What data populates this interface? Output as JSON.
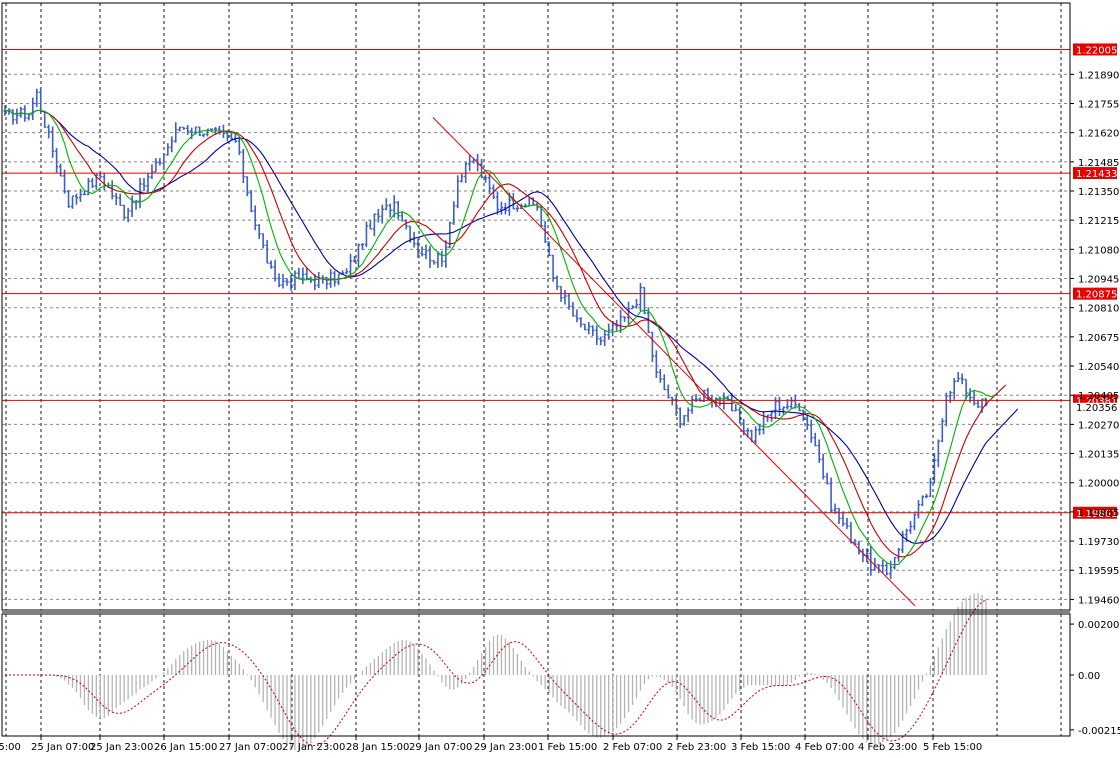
{
  "chart_data": {
    "type": "line",
    "price_ticks": [
      "1.21890",
      "1.21755",
      "1.21620",
      "1.21485",
      "1.21350",
      "1.21215",
      "1.21080",
      "1.20945",
      "1.20810",
      "1.20675",
      "1.20540",
      "1.20405",
      "1.20270",
      "1.20135",
      "1.20000",
      "1.19865",
      "1.19730",
      "1.19595",
      "1.19460"
    ],
    "time_ticks": [
      "25 Jan 07:00",
      "25 Jan 23:00",
      "26 Jan 15:00",
      "27 Jan 07:00",
      "27 Jan 23:00",
      "28 Jan 15:00",
      "29 Jan 07:00",
      "29 Jan 23:00",
      "1 Feb 15:00",
      "2 Feb 07:00",
      "2 Feb 23:00",
      "3 Feb 15:00",
      "4 Feb 07:00",
      "4 Feb 23:00",
      "5 Feb 15:00"
    ],
    "time_tick_partial": "15:00",
    "levels": [
      {
        "label": "1.22005",
        "value": 1.22005
      },
      {
        "label": "1.21433",
        "value": 1.21433
      },
      {
        "label": "1.20875",
        "value": 1.20875
      },
      {
        "label": "1.20381",
        "value": 1.20381
      },
      {
        "label": "1.19861",
        "value": 1.19861
      }
    ],
    "current_price_label": "1.20356",
    "trendline": {
      "from": [
        "29 Jan 07:00",
        1.2169
      ],
      "to": [
        "4 Feb 23:00",
        1.1943
      ]
    },
    "series": [
      {
        "values": [
          1.217,
          1.214,
          1.216,
          1.209,
          1.211,
          1.215,
          1.21,
          1.206,
          1.2035,
          1.2005,
          1.196,
          1.2045,
          1.2036
        ]
      }
    ],
    "oscillator_ticks": [
      "0.002003",
      "0.00",
      "-0.002157"
    ],
    "colors": {
      "candles": "#3c5fc8",
      "levels": "#e60000",
      "ma_fast": "#00b400",
      "ma_mid": "#c80000",
      "ma_slow": "#0000a0",
      "trendline": "#e60000",
      "histogram": "#b4b4b4",
      "signal": "#c80000"
    }
  }
}
